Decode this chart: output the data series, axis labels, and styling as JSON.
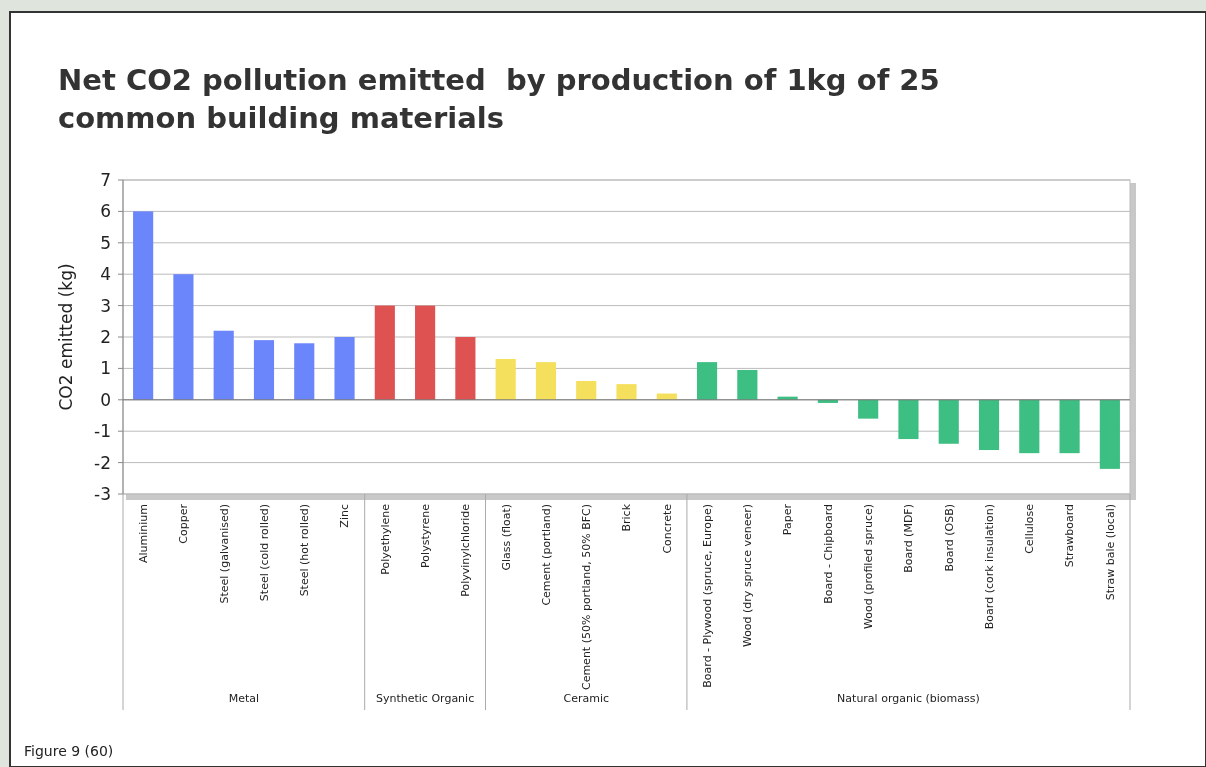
{
  "chart_data": {
    "type": "bar",
    "title": "Net CO2 pollution emitted  by production of 1kg of 25 common building materials",
    "ylabel": "CO2 emitted (kg)",
    "categories": [
      "Aluminium",
      "Copper",
      "Steel (galvanised)",
      "Steel (cold rolled)",
      "Steel (hot rolled)",
      "Zinc",
      "Polyethylene",
      "Polystyrene",
      "Polyvinylchloride",
      "Glass (float)",
      "Cement (portland)",
      "Cement (50% portland, 50% BFC)",
      "Brick",
      "Concrete",
      "Board - Plywood (spruce, Europe)",
      "Wood (dry spruce veneer)",
      "Paper",
      "Board - Chipboard",
      "Wood (profiled spruce)",
      "Board (MDF)",
      "Board (OSB)",
      "Board (cork insulation)",
      "Cellulose",
      "Strawboard",
      "Straw bale (local)"
    ],
    "values": [
      6,
      4,
      2.2,
      1.9,
      1.8,
      2,
      3,
      3,
      2,
      1.3,
      1.2,
      0.6,
      0.5,
      0.2,
      1.2,
      0.95,
      0.1,
      -0.1,
      -0.6,
      -1.25,
      -1.4,
      -1.6,
      -1.7,
      -1.7,
      -2.2
    ],
    "colors": [
      "#6b85fb",
      "#6b85fb",
      "#6b85fb",
      "#6b85fb",
      "#6b85fb",
      "#6b85fb",
      "#df5252",
      "#df5252",
      "#df5252",
      "#f4e05c",
      "#f4e05c",
      "#f4e05c",
      "#f4e05c",
      "#f4e05c",
      "#3dbe82",
      "#3dbe82",
      "#3dbe82",
      "#3dbe82",
      "#3dbe82",
      "#3dbe82",
      "#3dbe82",
      "#3dbe82",
      "#3dbe82",
      "#3dbe82",
      "#3dbe82"
    ],
    "ylim": [
      -3,
      7
    ],
    "yticks": [
      -3,
      -2,
      -1,
      0,
      1,
      2,
      3,
      4,
      5,
      6,
      7
    ],
    "grid": "y",
    "annotations": [
      "Metal",
      "Synthetic Organic",
      "Ceramic",
      "Natural organic (biomass)",
      "Figure 9 (60)"
    ]
  }
}
